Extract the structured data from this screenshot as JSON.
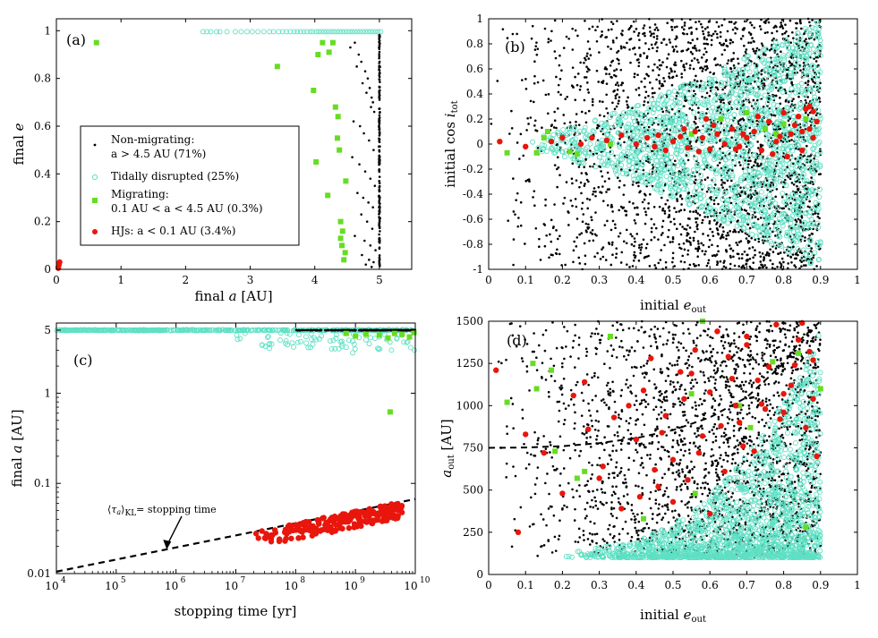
{
  "colors": {
    "black": "#000000",
    "cyan": "#5fe0c4",
    "green": "#66dd22",
    "red": "#e8160c",
    "line": "#000000"
  },
  "chart_data": [
    {
      "id": "a",
      "type": "scatter",
      "panel_label": "(a)",
      "xlabel": "final a [AU]",
      "ylabel": "final e",
      "xlim": [
        0,
        5.5
      ],
      "ylim": [
        0,
        1.05
      ],
      "xticks": [
        "0",
        "1",
        "2",
        "3",
        "4",
        "5"
      ],
      "yticks": [
        "0",
        "0.2",
        "0.4",
        "0.6",
        "0.8",
        "1"
      ],
      "legend": {
        "placement": "center-left",
        "entries": [
          {
            "series": "non_migrating",
            "lines": [
              "Non-migrating:",
              "a > 4.5 AU (71%)"
            ]
          },
          {
            "series": "tidally_disrupted",
            "lines": [
              "Tidally disrupted (25%)"
            ]
          },
          {
            "series": "migrating",
            "lines": [
              "Migrating:",
              "0.1 AU < a < 4.5 AU (0.3%)"
            ]
          },
          {
            "series": "hjs",
            "lines": [
              "HJs: a < 0.1 AU (3.4%)"
            ]
          }
        ]
      },
      "series": [
        {
          "name": "Tidally disrupted",
          "key": "tidally_disrupted",
          "marker": "open-circle",
          "color": "cyan",
          "x": [
            2.27,
            2.33,
            2.39,
            2.48,
            2.53,
            2.64,
            2.77,
            2.86,
            2.95,
            3.03,
            3.12,
            3.21,
            3.3,
            3.36,
            3.44,
            3.5,
            3.56,
            3.62,
            3.68,
            3.73,
            3.78,
            3.83,
            3.88,
            3.93,
            3.97,
            4.02,
            4.06,
            4.1,
            4.14,
            4.18,
            4.22,
            4.26,
            4.3,
            4.34,
            4.38,
            4.42,
            4.46,
            4.5,
            4.54,
            4.58,
            4.62,
            4.66,
            4.7,
            4.74,
            4.78,
            4.82,
            4.86,
            4.9,
            4.94,
            4.98,
            5.02
          ],
          "y": [
            0.996,
            0.996,
            0.996,
            0.996,
            0.996,
            0.996,
            0.996,
            0.996,
            0.996,
            0.996,
            0.996,
            0.996,
            0.996,
            0.996,
            0.996,
            0.996,
            0.996,
            0.996,
            0.996,
            0.996,
            0.996,
            0.996,
            0.996,
            0.996,
            0.996,
            0.996,
            0.996,
            0.996,
            0.996,
            0.996,
            0.996,
            0.996,
            0.996,
            0.996,
            0.996,
            0.996,
            0.996,
            0.996,
            0.996,
            0.996,
            0.996,
            0.996,
            0.996,
            0.996,
            0.996,
            0.996,
            0.996,
            0.996,
            0.996,
            0.996,
            0.996
          ]
        },
        {
          "name": "Non-migrating",
          "key": "non_migrating",
          "marker": "dot",
          "color": "black",
          "x": [
            4.62,
            4.68,
            4.72,
            4.78,
            4.82,
            4.85,
            4.88,
            4.9,
            4.92,
            4.55,
            4.65,
            4.74,
            4.8,
            4.87,
            4.6,
            4.7,
            4.76,
            4.84,
            4.91,
            4.58,
            4.69,
            4.78,
            4.86,
            4.93,
            4.66,
            4.75,
            4.83,
            4.9,
            4.72,
            4.81,
            4.89,
            4.62,
            4.77,
            4.86,
            4.94,
            4.73,
            4.84,
            4.91,
            4.79,
            4.88
          ],
          "y": [
            0.95,
            0.9,
            0.87,
            0.83,
            0.8,
            0.76,
            0.72,
            0.7,
            0.66,
            0.93,
            0.85,
            0.78,
            0.74,
            0.68,
            0.62,
            0.6,
            0.57,
            0.54,
            0.5,
            0.47,
            0.44,
            0.41,
            0.38,
            0.35,
            0.32,
            0.3,
            0.28,
            0.26,
            0.23,
            0.2,
            0.17,
            0.14,
            0.12,
            0.1,
            0.08,
            0.06,
            0.04,
            0.03,
            0.02,
            0.01
          ]
        },
        {
          "name": "Migrating",
          "key": "migrating",
          "marker": "square",
          "color": "green",
          "x": [
            0.62,
            3.42,
            3.98,
            4.02,
            4.12,
            4.22,
            4.28,
            4.32,
            4.36,
            4.38,
            4.4,
            4.42,
            4.45,
            4.48,
            4.47,
            4.43,
            4.2,
            4.05,
            4.35,
            4.4
          ],
          "y": [
            0.95,
            0.85,
            0.75,
            0.45,
            0.95,
            0.91,
            0.95,
            0.68,
            0.64,
            0.5,
            0.13,
            0.1,
            0.04,
            0.37,
            0.07,
            0.16,
            0.31,
            0.9,
            0.55,
            0.2
          ]
        },
        {
          "name": "HJs",
          "key": "hjs",
          "marker": "dot",
          "color": "red",
          "x": [
            0.03,
            0.04,
            0.05,
            0.03
          ],
          "y": [
            0.01,
            0.02,
            0.03,
            0.005
          ]
        }
      ],
      "vertical_band": {
        "series": "non_migrating",
        "x": 5.0,
        "y_range": [
          0,
          0.99
        ]
      }
    },
    {
      "id": "b",
      "type": "scatter",
      "panel_label": "(b)",
      "xlabel": "initial e_out",
      "ylabel": "initial cos i_tot",
      "xlim": [
        0,
        1
      ],
      "ylim": [
        -1,
        1
      ],
      "xticks": [
        "0",
        "0.1",
        "0.2",
        "0.3",
        "0.4",
        "0.5",
        "0.6",
        "0.7",
        "0.8",
        "0.9",
        "1"
      ],
      "yticks": [
        "-1",
        "-0.8",
        "-0.6",
        "-0.4",
        "-0.2",
        "0",
        "0.2",
        "0.4",
        "0.6",
        "0.8",
        "1"
      ],
      "series": [
        {
          "name": "Non-migrating",
          "key": "non_migrating",
          "marker": "dot",
          "color": "black",
          "distribution": "uniform",
          "x_range": [
            0.0,
            0.9
          ],
          "y_range": [
            -1,
            1
          ],
          "density_increasing_with_x": true
        },
        {
          "name": "Tidally disrupted",
          "key": "tidally_disrupted",
          "marker": "open-circle",
          "color": "cyan",
          "distribution": "band",
          "x_range": [
            0.1,
            0.9
          ],
          "y_center": 0,
          "y_halfwidth_at_xmax": 0.95
        },
        {
          "name": "Migrating",
          "key": "migrating",
          "marker": "square",
          "color": "green",
          "x": [
            0.05,
            0.13,
            0.15,
            0.16,
            0.22,
            0.24,
            0.33,
            0.55,
            0.63,
            0.7,
            0.75,
            0.78,
            0.8,
            0.86
          ],
          "y": [
            -0.07,
            -0.07,
            0.05,
            0.1,
            -0.06,
            -0.08,
            0.0,
            0.08,
            0.2,
            0.25,
            0.12,
            0.08,
            0.16,
            0.2
          ]
        },
        {
          "name": "HJs",
          "key": "hjs",
          "marker": "dot",
          "color": "red",
          "x": [
            0.03,
            0.1,
            0.17,
            0.2,
            0.25,
            0.28,
            0.32,
            0.36,
            0.4,
            0.43,
            0.46,
            0.48,
            0.5,
            0.52,
            0.54,
            0.56,
            0.58,
            0.6,
            0.62,
            0.64,
            0.66,
            0.68,
            0.7,
            0.72,
            0.74,
            0.76,
            0.78,
            0.8,
            0.82,
            0.84,
            0.85,
            0.86,
            0.87,
            0.88,
            0.89,
            0.45,
            0.53,
            0.61,
            0.69,
            0.77,
            0.83,
            0.88,
            0.57,
            0.73,
            0.79,
            0.85,
            0.67,
            0.59,
            0.81,
            0.87
          ],
          "y": [
            0.02,
            -0.02,
            0.02,
            0.05,
            0.0,
            0.05,
            0.03,
            0.07,
            0.0,
            0.05,
            0.07,
            -0.05,
            0.02,
            0.06,
            -0.03,
            0.1,
            0.05,
            -0.04,
            0.08,
            0.0,
            0.12,
            -0.02,
            0.05,
            0.1,
            -0.05,
            0.18,
            0.02,
            0.25,
            0.08,
            0.22,
            -0.05,
            0.28,
            0.12,
            0.05,
            0.18,
            -0.02,
            0.12,
            0.15,
            0.08,
            -0.08,
            0.15,
            0.26,
            -0.06,
            0.22,
            0.06,
            0.1,
            -0.04,
            0.2,
            -0.1,
            0.3
          ]
        }
      ]
    },
    {
      "id": "c",
      "type": "scatter",
      "panel_label": "(c)",
      "xlabel": "stopping time [yr]",
      "ylabel": "final a [AU]",
      "xscale": "log",
      "yscale": "log",
      "xlim": [
        10000,
        10000000000
      ],
      "ylim": [
        0.01,
        6
      ],
      "xtick_base": "10",
      "xtick_exponents": [
        "4",
        "5",
        "6",
        "7",
        "8",
        "9",
        "10"
      ],
      "yticks": [
        "0.01",
        "0.1",
        "1",
        "5"
      ],
      "annotation": {
        "text": "⟨τa⟩KL= stopping time",
        "arrow_to": [
          700000,
          0.0185
        ]
      },
      "reference_line": {
        "label": "⟨τa⟩KL = stopping time",
        "style": "dashed",
        "x": [
          10000,
          10000000000
        ],
        "y": [
          0.0105,
          0.067
        ]
      },
      "series": [
        {
          "name": "Tidally disrupted",
          "key": "tidally_disrupted",
          "marker": "open-circle",
          "color": "cyan",
          "distribution": "horizontal-band",
          "y_center": 5.0,
          "scatter_below_after_x": 10000000,
          "x": [
            80000000,
            150000000,
            250000000,
            400000000,
            600000000,
            900000000,
            1500000000,
            2500000000,
            4000000000,
            6000000000
          ],
          "y": [
            4.5,
            3.6,
            4.0,
            3.1,
            3.5,
            2.8,
            3.9,
            4.2,
            3.0,
            4.4
          ]
        },
        {
          "name": "Non-migrating",
          "key": "non_migrating",
          "marker": "dot",
          "color": "black",
          "distribution": "horizontal-band",
          "y_center": 5.0,
          "x_range": [
            100000000,
            10000000000
          ]
        },
        {
          "name": "Migrating",
          "key": "migrating",
          "marker": "square",
          "color": "green",
          "x": [
            700000000,
            1000000000,
            1500000000,
            2500000000,
            3500000000,
            4500000000,
            6000000000,
            8000000000,
            9500000000,
            3800000000
          ],
          "y": [
            4.6,
            4.3,
            4.5,
            4.4,
            4.1,
            4.6,
            4.5,
            4.2,
            4.7,
            0.62
          ]
        },
        {
          "name": "HJs",
          "key": "hjs",
          "marker": "dot",
          "color": "red",
          "distribution": "cluster",
          "x_range": [
            20000000,
            6000000000
          ],
          "y_range_about_line": [
            0.66,
            1.0
          ]
        }
      ]
    },
    {
      "id": "d",
      "type": "scatter",
      "panel_label": "(d)",
      "xlabel": "initial e_out",
      "ylabel": "a_out [AU]",
      "xlim": [
        0,
        1
      ],
      "ylim": [
        0,
        1500
      ],
      "xticks": [
        "0",
        "0.1",
        "0.2",
        "0.3",
        "0.4",
        "0.5",
        "0.6",
        "0.7",
        "0.8",
        "0.9",
        "1"
      ],
      "yticks": [
        "0",
        "250",
        "500",
        "750",
        "1000",
        "1250",
        "1500"
      ],
      "reference_line": {
        "style": "dashed",
        "x": [
          0.0,
          0.1,
          0.2,
          0.3,
          0.4,
          0.5,
          0.6,
          0.7,
          0.8,
          0.85,
          0.9
        ],
        "y": [
          750,
          752,
          760,
          778,
          808,
          855,
          930,
          1050,
          1250,
          1400,
          1580
        ]
      },
      "series": [
        {
          "name": "Non-migrating",
          "key": "non_migrating",
          "marker": "dot",
          "color": "black",
          "distribution": "uniform",
          "x_range": [
            0.0,
            0.9
          ],
          "y_range": [
            100,
            1500
          ]
        },
        {
          "name": "Tidally disrupted",
          "key": "tidally_disrupted",
          "marker": "open-circle",
          "color": "cyan",
          "distribution": "bottom-right",
          "x_range": [
            0.2,
            0.9
          ],
          "y_range": [
            100,
            1500
          ]
        },
        {
          "name": "Migrating",
          "key": "migrating",
          "marker": "square",
          "color": "green",
          "x": [
            0.05,
            0.12,
            0.13,
            0.17,
            0.24,
            0.26,
            0.33,
            0.42,
            0.55,
            0.56,
            0.58,
            0.68,
            0.71,
            0.77,
            0.84,
            0.9,
            0.86,
            0.18
          ],
          "y": [
            1020,
            1250,
            1100,
            1210,
            570,
            610,
            1410,
            330,
            1070,
            480,
            1500,
            1000,
            870,
            1260,
            1310,
            1100,
            280,
            730
          ]
        },
        {
          "name": "HJs",
          "key": "hjs",
          "marker": "dot",
          "color": "red",
          "x": [
            0.02,
            0.08,
            0.1,
            0.15,
            0.2,
            0.23,
            0.26,
            0.3,
            0.34,
            0.38,
            0.4,
            0.42,
            0.44,
            0.46,
            0.48,
            0.5,
            0.52,
            0.54,
            0.56,
            0.58,
            0.6,
            0.62,
            0.64,
            0.66,
            0.68,
            0.7,
            0.72,
            0.74,
            0.76,
            0.78,
            0.8,
            0.82,
            0.84,
            0.86,
            0.88,
            0.89,
            0.36,
            0.45,
            0.55,
            0.65,
            0.75,
            0.85,
            0.5,
            0.6,
            0.7,
            0.8,
            0.87,
            0.63,
            0.73,
            0.83,
            0.41,
            0.31,
            0.27,
            0.53,
            0.69,
            0.79,
            0.88,
            0.47,
            0.57,
            0.67
          ],
          "y": [
            1210,
            250,
            830,
            720,
            480,
            1060,
            1140,
            570,
            930,
            1000,
            800,
            1090,
            1280,
            520,
            940,
            680,
            1200,
            560,
            1330,
            820,
            1080,
            1440,
            610,
            1160,
            900,
            1360,
            730,
            1010,
            1230,
            1480,
            960,
            1120,
            1390,
            870,
            1270,
            700,
            390,
            620,
            1190,
            1290,
            980,
            1490,
            430,
            360,
            1410,
            1070,
            1320,
            880,
            1150,
            1240,
            460,
            640,
            860,
            1040,
            760,
            920,
            1040,
            840,
            720,
            1000
          ]
        }
      ]
    }
  ]
}
